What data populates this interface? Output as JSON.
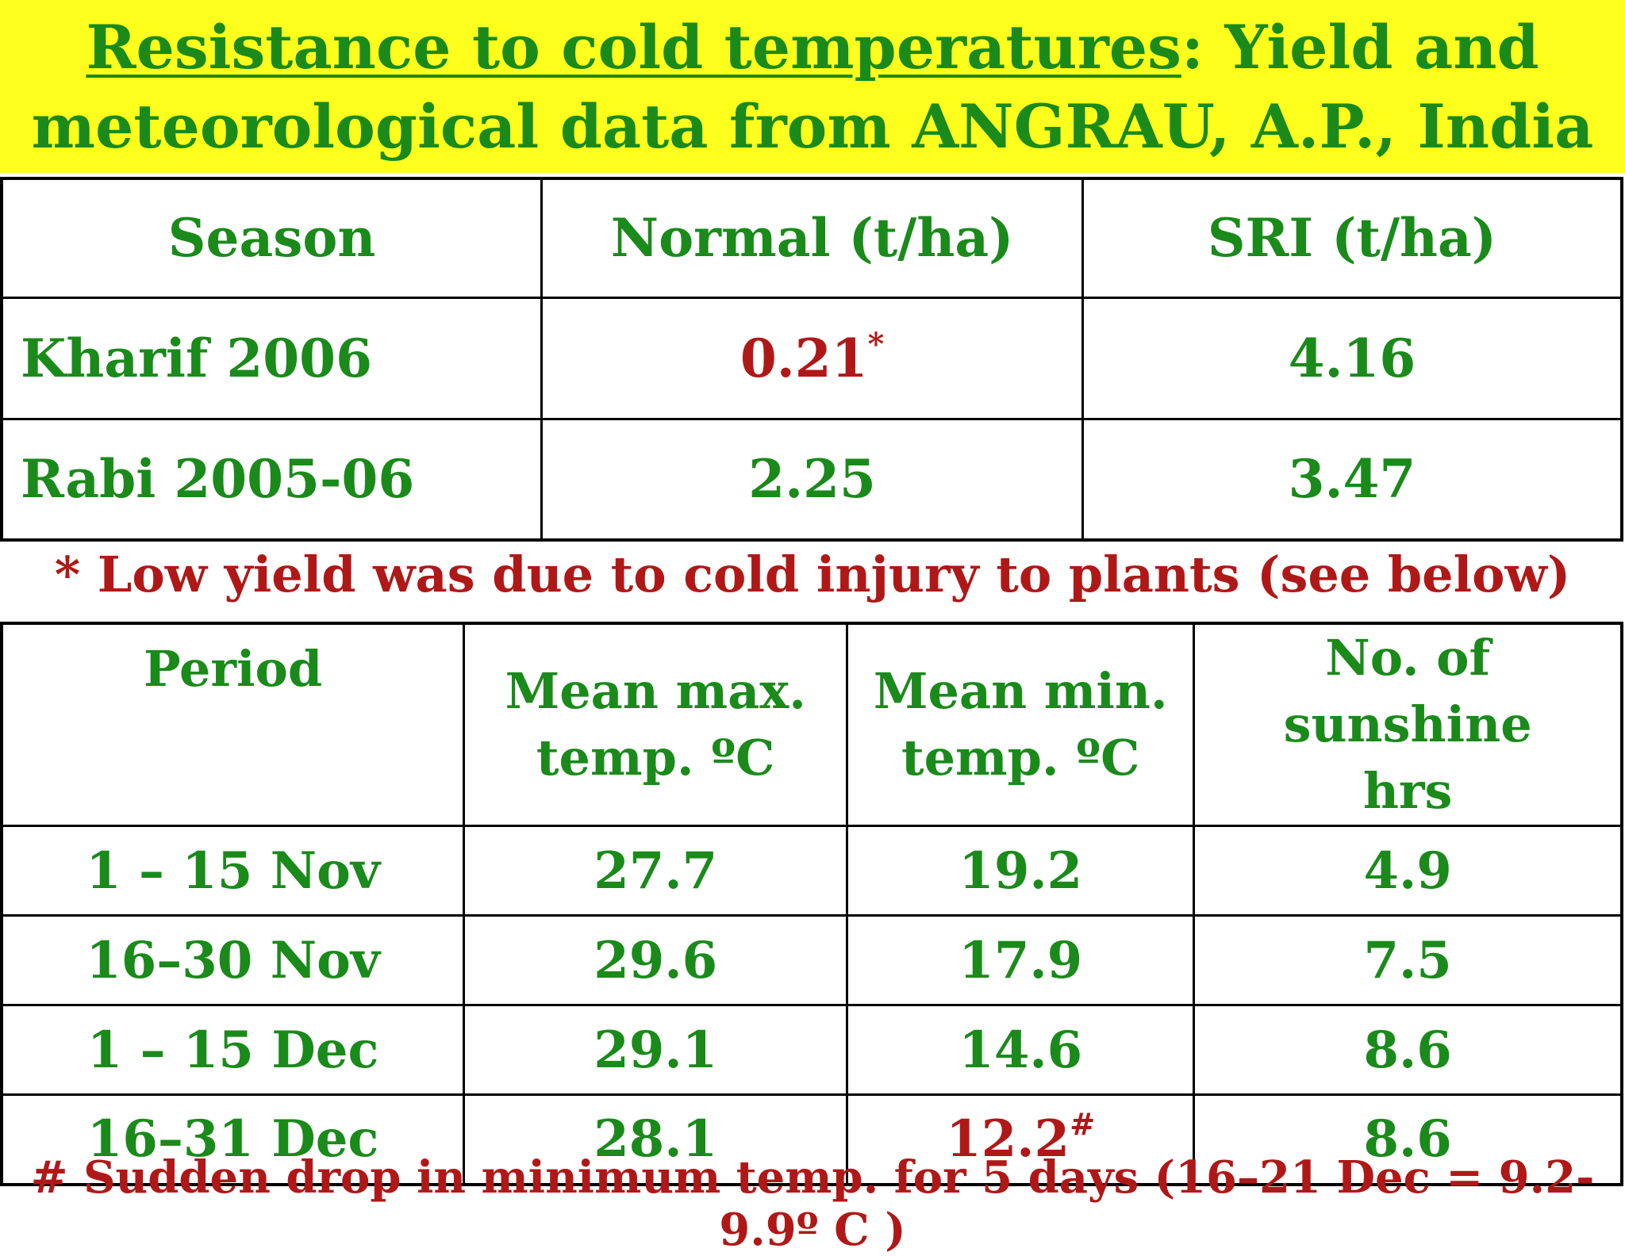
{
  "title": {
    "underlined": "Resistance  to  cold  temperatures",
    "rest_line1": ":  Yield and",
    "line2": "meteorological data from ANGRAU, A.P., India"
  },
  "yield_table": {
    "headers": [
      "Season",
      "Normal (t/ha)",
      "SRI (t/ha)"
    ],
    "rows": [
      {
        "season": "Kharif 2006",
        "normal": "0.21",
        "normal_mark": "*",
        "sri": "4.16"
      },
      {
        "season": "Rabi 2005-06",
        "normal": "2.25",
        "normal_mark": "",
        "sri": "3.47"
      }
    ]
  },
  "yield_note": "* Low yield was due to cold injury to plants (see below)",
  "weather_table": {
    "headers": {
      "period": "Period",
      "max_l1": "Mean max.",
      "max_l2": "temp. ºC",
      "min_l1": "Mean min.",
      "min_l2": "temp. ºC",
      "sun_l1": "No. of sunshine",
      "sun_l2": "hrs"
    },
    "rows": [
      {
        "period": "1 – 15 Nov",
        "max": "27.7",
        "min": "19.2",
        "min_mark": "",
        "sun": "4.9"
      },
      {
        "period": "16–30 Nov",
        "max": "29.6",
        "min": "17.9",
        "min_mark": "",
        "sun": "7.5"
      },
      {
        "period": "1 – 15 Dec",
        "max": "29.1",
        "min": "14.6",
        "min_mark": "",
        "sun": "8.6"
      },
      {
        "period": "16–31 Dec",
        "max": "28.1",
        "min": "12.2",
        "min_mark": "#",
        "sun": "8.6"
      }
    ]
  },
  "weather_note": "# Sudden drop in minimum temp. for 5 days (16–21 Dec = 9.2-9.9º C )",
  "colors": {
    "banner": "#ffff1e",
    "green_text": "#1a8a1a",
    "red_text": "#b01818"
  }
}
